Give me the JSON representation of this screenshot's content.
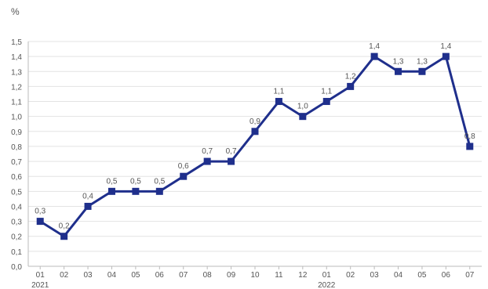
{
  "chart_data": {
    "type": "line",
    "title": "",
    "ylabel": "%",
    "xlabel": "",
    "ylim": [
      0,
      1.5
    ],
    "yticks": [
      "0,0",
      "0,1",
      "0,2",
      "0,3",
      "0,4",
      "0,5",
      "0,6",
      "0,7",
      "0,8",
      "0,9",
      "1,0",
      "1,1",
      "1,2",
      "1,3",
      "1,4",
      "1,5"
    ],
    "categories": [
      "01",
      "02",
      "03",
      "04",
      "05",
      "06",
      "07",
      "08",
      "09",
      "10",
      "11",
      "12",
      "01",
      "02",
      "03",
      "04",
      "05",
      "06",
      "07"
    ],
    "year_labels": [
      {
        "label": "2021",
        "index": 0
      },
      {
        "label": "2022",
        "index": 12
      }
    ],
    "series": [
      {
        "values": [
          0.3,
          0.2,
          0.4,
          0.5,
          0.5,
          0.5,
          0.6,
          0.7,
          0.7,
          0.9,
          1.1,
          1.0,
          1.1,
          1.2,
          1.4,
          1.3,
          1.3,
          1.4,
          0.8
        ],
        "labels": [
          "0,3",
          "0,2",
          "0,4",
          "0,5",
          "0,5",
          "0,5",
          "0,6",
          "0,7",
          "0,7",
          "0,9",
          "1,1",
          "1,0",
          "1,1",
          "1,2",
          "1,4",
          "1,3",
          "1,3",
          "1,4",
          "0,8"
        ],
        "color": "#1f2f8c"
      }
    ],
    "grid": true,
    "legend": "none",
    "colors": {
      "line": "#1f2f8c",
      "grid": "#e3e3e3",
      "axis": "#bbbbbb",
      "text": "#555555"
    }
  }
}
